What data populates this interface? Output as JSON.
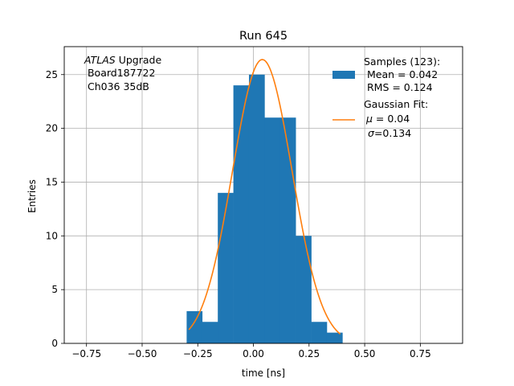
{
  "chart_data": {
    "type": "bar",
    "title": "Run 645",
    "xlabel": "time [ns]",
    "ylabel": "Entries",
    "xlim": [
      -0.85,
      0.94
    ],
    "ylim": [
      0,
      27.6
    ],
    "grid": true,
    "x_ticks": [
      -0.75,
      -0.5,
      -0.25,
      0.0,
      0.25,
      0.5,
      0.75
    ],
    "x_tick_labels": [
      "−0.75",
      "−0.50",
      "−0.25",
      "0.00",
      "0.25",
      "0.50",
      "0.75"
    ],
    "y_ticks": [
      0,
      5,
      10,
      15,
      20,
      25
    ],
    "y_tick_labels": [
      "0",
      "5",
      "10",
      "15",
      "20",
      "25"
    ],
    "histogram": {
      "bins": [
        {
          "x0": -0.3,
          "x1": -0.23,
          "count": 3
        },
        {
          "x0": -0.23,
          "x1": -0.16,
          "count": 2
        },
        {
          "x0": -0.16,
          "x1": -0.09,
          "count": 14
        },
        {
          "x0": -0.09,
          "x1": -0.02,
          "count": 24
        },
        {
          "x0": -0.02,
          "x1": 0.05,
          "count": 25
        },
        {
          "x0": 0.05,
          "x1": 0.12,
          "count": 21
        },
        {
          "x0": 0.12,
          "x1": 0.19,
          "count": 21
        },
        {
          "x0": 0.19,
          "x1": 0.26,
          "count": 10
        },
        {
          "x0": 0.26,
          "x1": 0.33,
          "count": 2
        },
        {
          "x0": 0.33,
          "x1": 0.4,
          "count": 1
        }
      ],
      "color": "#1f77b4"
    },
    "fit": {
      "amplitude": 26.4,
      "mean": 0.04,
      "sigma": 0.134,
      "x_range": [
        -0.29,
        0.39
      ],
      "color": "#ff7f0e"
    },
    "annotation": {
      "line1_italic": "ATLAS",
      "line1_rest": " Upgrade",
      "line2": " Board187722",
      "line3": " Ch036 35dB"
    },
    "legend": {
      "location": "top-right",
      "samples_title": "Samples (123):",
      "samples_mean": " Mean = 0.042",
      "samples_rms": " RMS = 0.124",
      "fit_title": "Gaussian Fit:",
      "fit_mu_symbol": "μ",
      "fit_mu_value": " = 0.04",
      "fit_sigma_symbol": "σ",
      "fit_sigma_value": "=0.134"
    }
  }
}
